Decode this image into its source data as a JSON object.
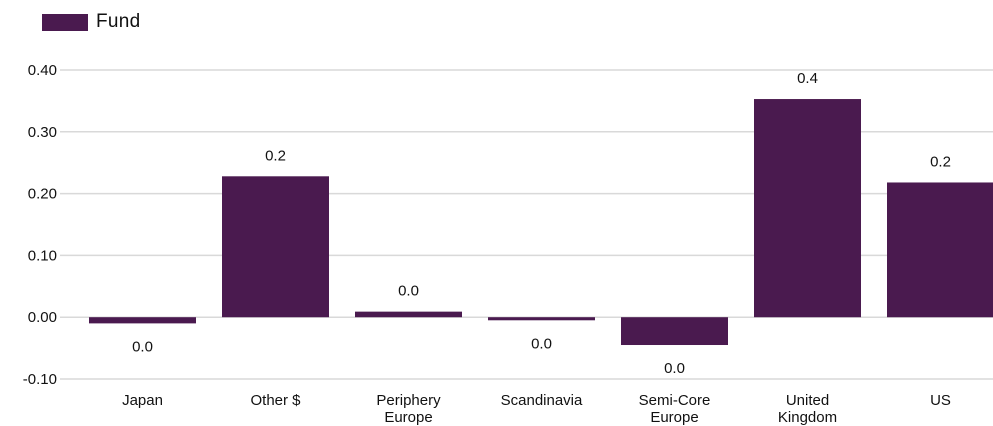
{
  "legend": {
    "label": "Fund"
  },
  "colors": {
    "bar": "#4a1a4f",
    "grid": "#d9d9d9"
  },
  "chart_data": {
    "type": "bar",
    "title": "",
    "xlabel": "",
    "ylabel": "",
    "ylim": [
      -0.1,
      0.4
    ],
    "y_ticks": [
      "0.40",
      "0.30",
      "0.20",
      "0.10",
      "0.00",
      "-0.10"
    ],
    "y_tick_values": [
      0.4,
      0.3,
      0.2,
      0.1,
      0.0,
      -0.1
    ],
    "grid": true,
    "legend_position": "top-left",
    "categories": [
      [
        "Japan"
      ],
      [
        "Other $"
      ],
      [
        "Periphery",
        "Europe"
      ],
      [
        "Scandinavia"
      ],
      [
        "Semi-Core",
        "Europe"
      ],
      [
        "United",
        "Kingdom"
      ],
      [
        "US"
      ]
    ],
    "series": [
      {
        "name": "Fund",
        "values": [
          -0.01,
          0.228,
          0.009,
          -0.005,
          -0.045,
          0.353,
          0.218
        ],
        "labels": [
          "0.0",
          "0.2",
          "0.0",
          "0.0",
          "0.0",
          "0.4",
          "0.2"
        ]
      }
    ]
  }
}
